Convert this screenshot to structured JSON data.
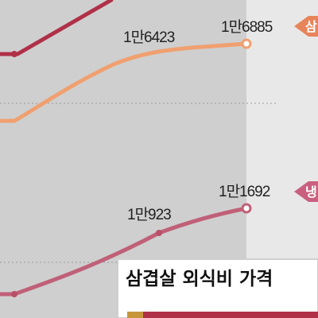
{
  "chart_data": {
    "type": "line",
    "title": "삼겹살 외식비 가격",
    "x_points": 3,
    "series": [
      {
        "name": "",
        "color": "#b03048",
        "values": [
          null,
          null,
          null
        ],
        "data_labels": [
          "",
          "",
          ""
        ]
      },
      {
        "name": "",
        "color": "#f0a070",
        "values": [
          null,
          16423,
          16885
        ],
        "data_labels": [
          "",
          "1만6423",
          "1만6885"
        ],
        "tag": "삼"
      },
      {
        "name": "",
        "color": "#c06078",
        "values": [
          null,
          10923,
          11692
        ],
        "data_labels": [
          "",
          "1만923",
          "1만1692"
        ],
        "tag": "냉"
      }
    ],
    "grid": true,
    "legend": "right-tags",
    "colors": {
      "band_gray": "#cfcfcf",
      "band_light": "#e8e8e8",
      "title_box_bg": "#ffffff",
      "title_box_border": "#cfcfcf",
      "title_bar_left": "#c8963a",
      "title_bar_right": "#b03048"
    }
  }
}
